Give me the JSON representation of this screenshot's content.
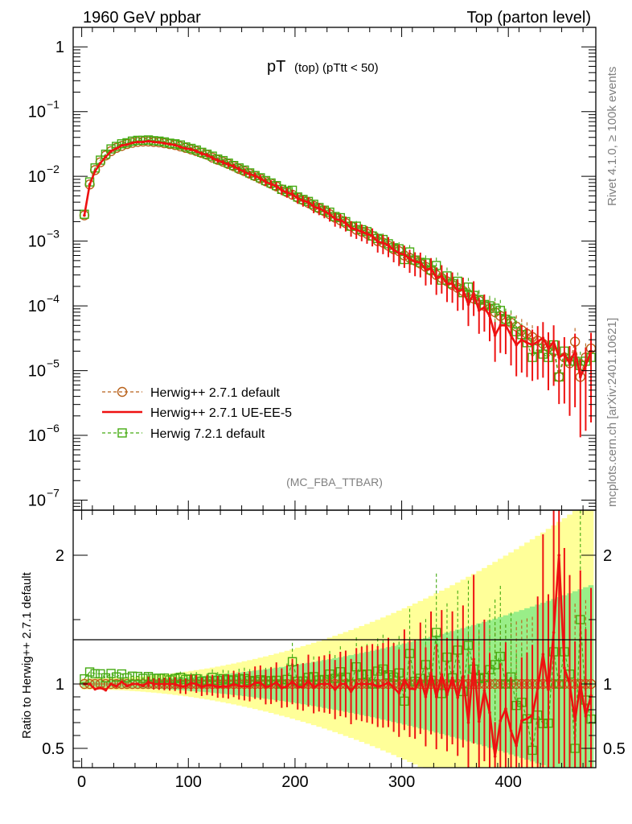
{
  "header": {
    "left": "1960 GeV ppbar",
    "right": "Top (parton level)"
  },
  "side_text": {
    "rivet": "Rivet 4.1.0, ≥ 100k events",
    "mcplots": "mcplots.cern.ch [arXiv:2401.10621]"
  },
  "chart_data": {
    "type": "line",
    "title_main": "pT",
    "title_sub": "(top) (pTtt < 50)",
    "watermark": "(MC_FBA_TTBAR)",
    "x_range": [
      -8,
      482
    ],
    "x_ticks": [
      "0",
      "100",
      "200",
      "300",
      "400"
    ],
    "x_tick_values": [
      0,
      100,
      200,
      300,
      400
    ],
    "top_panel": {
      "scale": "log",
      "y_range": [
        7e-08,
        2
      ],
      "y_tick_labels": [
        {
          "mant": "1",
          "exp": ""
        },
        {
          "mant": "10",
          "exp": "−1"
        },
        {
          "mant": "10",
          "exp": "−2"
        },
        {
          "mant": "10",
          "exp": "−3"
        },
        {
          "mant": "10",
          "exp": "−4"
        },
        {
          "mant": "10",
          "exp": "−5"
        },
        {
          "mant": "10",
          "exp": "−6"
        },
        {
          "mant": "10",
          "exp": "−7"
        }
      ],
      "y_tick_values": [
        1,
        0.1,
        0.01,
        0.001,
        0.0001,
        1e-05,
        1e-06,
        1e-07
      ]
    },
    "ratio_panel": {
      "ylabel": "Ratio to Herwig++ 2.7.1 default",
      "y_range": [
        0.35,
        2.35
      ],
      "y_ticks": [
        "0.5",
        "1",
        "2"
      ],
      "y_tick_values": [
        0.5,
        1,
        2
      ],
      "reference_line": 1
    },
    "legend": [
      {
        "name": "Herwig++ 2.7.1 default",
        "color": "#b8621b",
        "style": "dashed-circle"
      },
      {
        "name": "Herwig++ 2.7.1 UE-EE-5",
        "color": "#ee1111",
        "style": "solid"
      },
      {
        "name": "Herwig 7.2.1 default",
        "color": "#44aa11",
        "style": "dashed-square"
      }
    ],
    "colors": {
      "band_outer": "#ffff99",
      "band_inner": "#99ee88"
    },
    "x": [
      2.5,
      7.5,
      12.5,
      17.5,
      22.5,
      27.5,
      32.5,
      37.5,
      42.5,
      47.5,
      52.5,
      57.5,
      62.5,
      67.5,
      72.5,
      77.5,
      82.5,
      87.5,
      92.5,
      97.5,
      102.5,
      107.5,
      112.5,
      117.5,
      122.5,
      127.5,
      132.5,
      137.5,
      142.5,
      147.5,
      152.5,
      157.5,
      162.5,
      167.5,
      172.5,
      177.5,
      182.5,
      187.5,
      192.5,
      197.5,
      202.5,
      207.5,
      212.5,
      217.5,
      222.5,
      227.5,
      232.5,
      237.5,
      242.5,
      247.5,
      252.5,
      257.5,
      262.5,
      267.5,
      272.5,
      277.5,
      282.5,
      287.5,
      292.5,
      297.5,
      302.5,
      307.5,
      312.5,
      317.5,
      322.5,
      327.5,
      332.5,
      337.5,
      342.5,
      347.5,
      352.5,
      357.5,
      362.5,
      367.5,
      372.5,
      377.5,
      382.5,
      387.5,
      392.5,
      397.5,
      402.5,
      407.5,
      412.5,
      417.5,
      422.5,
      427.5,
      432.5,
      437.5,
      442.5,
      447.5,
      452.5,
      457.5,
      462.5,
      467.5,
      472.5,
      477.5
    ],
    "series": [
      {
        "name": "Herwig++ 2.7.1 default",
        "values": [
          0.0025,
          0.0075,
          0.0125,
          0.0165,
          0.021,
          0.0245,
          0.0275,
          0.0295,
          0.0315,
          0.033,
          0.034,
          0.0345,
          0.0345,
          0.034,
          0.0335,
          0.0325,
          0.0315,
          0.0305,
          0.029,
          0.0275,
          0.026,
          0.0245,
          0.023,
          0.0215,
          0.0195,
          0.018,
          0.0168,
          0.0155,
          0.0143,
          0.013,
          0.012,
          0.011,
          0.0101,
          0.0092,
          0.0084,
          0.0077,
          0.007,
          0.0063,
          0.0057,
          0.0052,
          0.0047,
          0.0043,
          0.0039,
          0.0035,
          0.0032,
          0.0029,
          0.0026,
          0.0023,
          0.0021,
          0.0019,
          0.0017,
          0.0015,
          0.0014,
          0.0013,
          0.0012,
          0.001,
          0.00095,
          0.00085,
          0.00075,
          0.0007,
          0.0006,
          0.00055,
          0.0005,
          0.00045,
          0.0004,
          0.00035,
          0.0003,
          0.00027,
          0.00024,
          0.00021,
          0.00019,
          0.00017,
          0.00015,
          0.00013,
          0.00012,
          0.0001,
          9e-05,
          8e-05,
          7e-05,
          6.2e-05,
          5.5e-05,
          4.8e-05,
          4.2e-05,
          3.7e-05,
          3.3e-05,
          2.9e-05,
          2.6e-05,
          2.3e-05,
          2e-05,
          8e-06,
          1.6e-05,
          1.3e-05,
          2.8e-05,
          8e-06,
          1.6e-05,
          2.2e-05
        ]
      },
      {
        "name": "Herwig++ 2.7.1 UE-EE-5",
        "values": [
          0.0025,
          0.0075,
          0.012,
          0.016,
          0.02,
          0.0245,
          0.027,
          0.03,
          0.031,
          0.033,
          0.034,
          0.034,
          0.035,
          0.034,
          0.0335,
          0.0325,
          0.0315,
          0.0305,
          0.0285,
          0.027,
          0.0262,
          0.0245,
          0.0225,
          0.0213,
          0.0193,
          0.0176,
          0.0165,
          0.0152,
          0.0143,
          0.0128,
          0.0118,
          0.0108,
          0.0102,
          0.0093,
          0.0082,
          0.0076,
          0.0071,
          0.0061,
          0.0056,
          0.0053,
          0.0046,
          0.0042,
          0.004,
          0.0034,
          0.0032,
          0.0029,
          0.0026,
          0.0022,
          0.0021,
          0.0019,
          0.0016,
          0.0015,
          0.0014,
          0.0013,
          0.0012,
          0.00098,
          0.00094,
          0.00086,
          0.00073,
          0.00065,
          0.00062,
          0.00053,
          0.00048,
          0.00047,
          0.00036,
          0.00038,
          0.00027,
          0.00029,
          0.00022,
          0.00022,
          0.00017,
          0.00018,
          0.000105,
          0.000155,
          8.5e-05,
          9.5e-05,
          7e-05,
          3.5e-05,
          5e-05,
          5e-05,
          3.5e-05,
          2.5e-05,
          3e-05,
          2.7e-05,
          2.5e-05,
          2.8e-05,
          3.2e-05,
          2.2e-05,
          2.8e-05,
          1.6e-05,
          1.8e-05,
          1.3e-05,
          2e-05,
          8e-06,
          1.2e-05,
          2e-05
        ]
      },
      {
        "name": "Herwig 7.2.1 default",
        "values": [
          0.0026,
          0.0082,
          0.0135,
          0.0178,
          0.022,
          0.0265,
          0.029,
          0.0318,
          0.033,
          0.035,
          0.036,
          0.036,
          0.0365,
          0.0355,
          0.035,
          0.034,
          0.0325,
          0.0318,
          0.0305,
          0.0285,
          0.027,
          0.0255,
          0.0235,
          0.022,
          0.0205,
          0.0185,
          0.0175,
          0.016,
          0.0147,
          0.0135,
          0.0125,
          0.0113,
          0.0103,
          0.0095,
          0.0086,
          0.0079,
          0.0072,
          0.0063,
          0.0059,
          0.0061,
          0.0048,
          0.0044,
          0.0041,
          0.0037,
          0.0033,
          0.003,
          0.0028,
          0.0024,
          0.0023,
          0.002,
          0.0017,
          0.0017,
          0.0015,
          0.0014,
          0.0012,
          0.0011,
          0.00106,
          0.00091,
          0.00079,
          0.00076,
          0.00052,
          0.00068,
          0.00051,
          0.00047,
          0.00046,
          0.00036,
          0.00042,
          0.00025,
          0.00029,
          0.00022,
          0.00024,
          0.00016,
          0.000195,
          0.000145,
          0.000125,
          0.000105,
          0.0001,
          9.2e-05,
          8.5e-05,
          6.2e-05,
          5.8e-05,
          4e-05,
          3.6e-05,
          2.7e-05,
          1.6e-05,
          2.2e-05,
          1.8e-05,
          1.6e-05,
          2.5e-05,
          8e-06,
          2e-05,
          1.4e-05,
          1.4e-05,
          1.2e-05,
          1.4e-05,
          1.6e-05
        ]
      }
    ]
  }
}
